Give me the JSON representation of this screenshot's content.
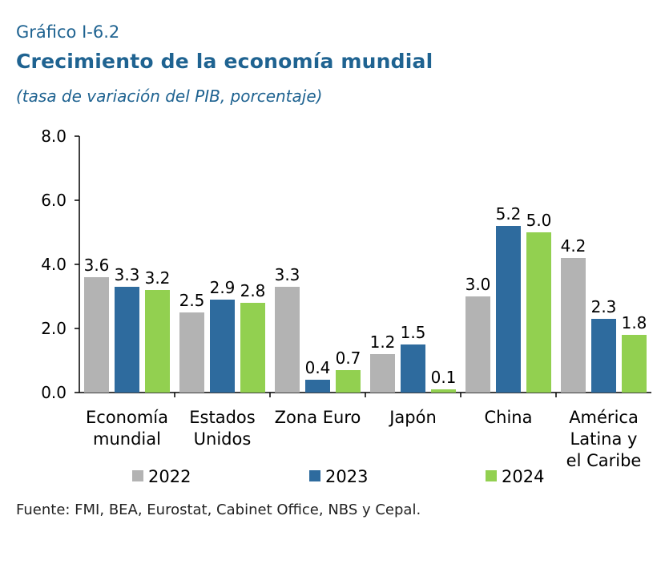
{
  "header": {
    "kicker": "Gráfico I-6.2",
    "title": "Crecimiento de la economía mundial",
    "subtitle": "(tasa de variación del PIB, porcentaje)"
  },
  "footer": {
    "source": "Fuente: FMI, BEA, Eurostat, Cabinet Office, NBS y Cepal."
  },
  "chart_data": {
    "type": "bar",
    "categories": [
      [
        "Economía",
        "mundial"
      ],
      [
        "Estados",
        "Unidos"
      ],
      [
        "Zona Euro"
      ],
      [
        "Japón"
      ],
      [
        "China"
      ],
      [
        "América",
        "Latina y",
        "el Caribe"
      ]
    ],
    "series": [
      {
        "name": "2022",
        "color": "#b3b3b3",
        "values": [
          3.6,
          2.5,
          3.3,
          1.2,
          3.0,
          4.2
        ]
      },
      {
        "name": "2023",
        "color": "#2e6b9e",
        "values": [
          3.3,
          2.9,
          0.4,
          1.5,
          5.2,
          2.3
        ]
      },
      {
        "name": "2024",
        "color": "#92d050",
        "values": [
          3.2,
          2.8,
          0.7,
          0.1,
          5.0,
          1.8
        ]
      }
    ],
    "value_labels": [
      [
        "3.6",
        "2.5",
        "3.3",
        "1.2",
        "3.0",
        "4.2"
      ],
      [
        "3.3",
        "2.9",
        "0.4",
        "1.5",
        "5.2",
        "2.3"
      ],
      [
        "3.2",
        "2.8",
        "0.7",
        "0.1",
        "5.0",
        "1.8"
      ]
    ],
    "yticks": [
      "0.0",
      "2.0",
      "4.0",
      "6.0",
      "8.0"
    ],
    "ylim": [
      0,
      8
    ],
    "grid": false,
    "legend_position": "bottom"
  }
}
